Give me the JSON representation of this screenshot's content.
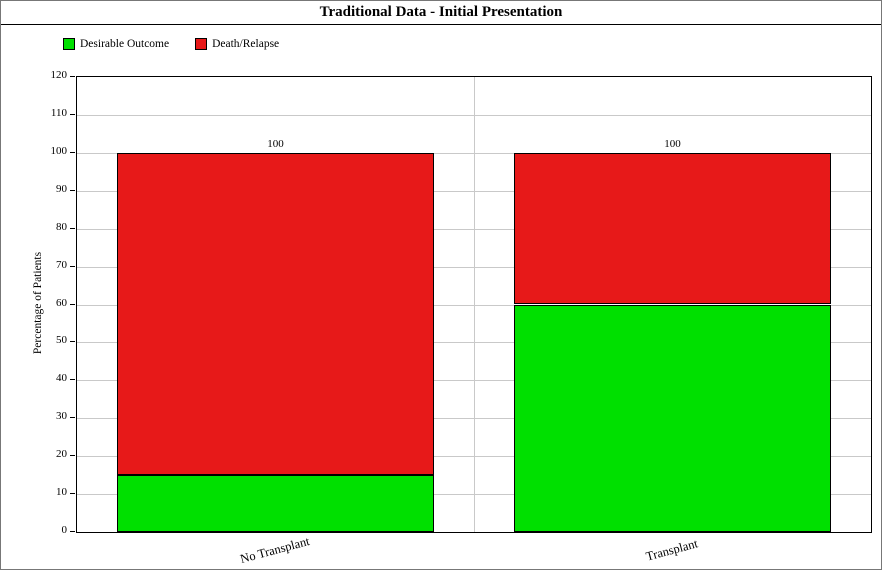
{
  "page": {
    "title": "Traditional Data - Initial Presentation"
  },
  "chart_data": {
    "type": "bar",
    "stacked": true,
    "title": "Traditional Data - Initial Presentation",
    "categories": [
      "No Transplant",
      "Transplant"
    ],
    "series": [
      {
        "name": "Desirable Outcome",
        "color": "#00e000",
        "values": [
          15,
          60
        ]
      },
      {
        "name": "Death/Relapse",
        "color": "#e71919",
        "values": [
          85,
          40
        ]
      }
    ],
    "bar_totals": [
      "100",
      "100"
    ],
    "xlabel": "",
    "ylabel": "Percentage of Patients",
    "ylim": [
      0,
      120
    ],
    "ytick_step": 10,
    "grid": true,
    "legend_position": "top-left"
  }
}
